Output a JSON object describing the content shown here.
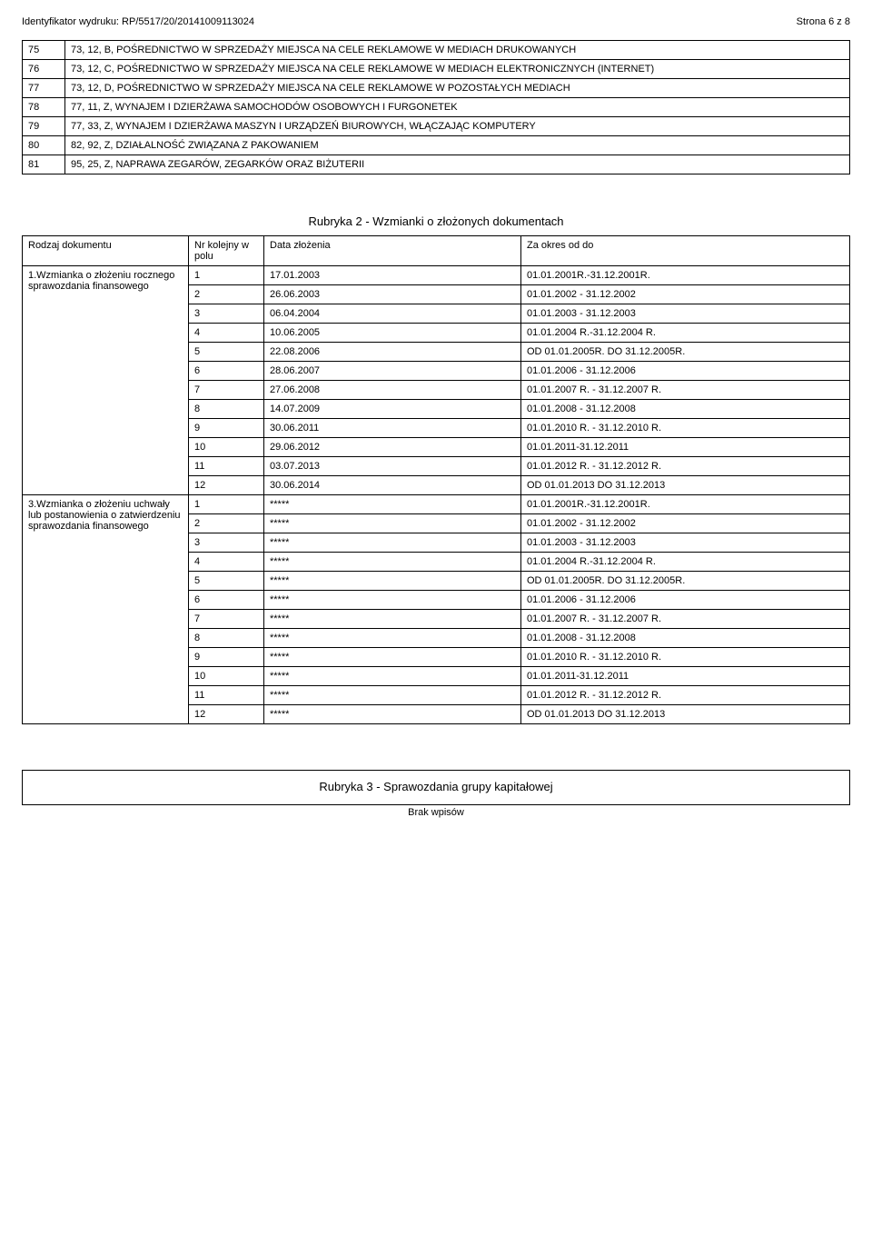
{
  "header": {
    "left": "Identyfikator wydruku: RP/5517/20/20141009113024",
    "right": "Strona 6 z 8"
  },
  "table1": {
    "rows": [
      {
        "n": "75",
        "txt": "73, 12, B, POŚREDNICTWO W SPRZEDAŻY MIEJSCA NA CELE REKLAMOWE W MEDIACH DRUKOWANYCH"
      },
      {
        "n": "76",
        "txt": "73, 12, C, POŚREDNICTWO W SPRZEDAŻY MIEJSCA NA CELE REKLAMOWE W MEDIACH ELEKTRONICZNYCH (INTERNET)"
      },
      {
        "n": "77",
        "txt": "73, 12, D, POŚREDNICTWO W SPRZEDAŻY MIEJSCA NA CELE REKLAMOWE W POZOSTAŁYCH MEDIACH"
      },
      {
        "n": "78",
        "txt": "77, 11, Z, WYNAJEM I DZIERŻAWA SAMOCHODÓW OSOBOWYCH I FURGONETEK"
      },
      {
        "n": "79",
        "txt": "77, 33, Z, WYNAJEM I DZIERŻAWA MASZYN I URZĄDZEŃ BIUROWYCH, WŁĄCZAJĄC KOMPUTERY"
      },
      {
        "n": "80",
        "txt": "82, 92, Z, DZIAŁALNOŚĆ ZWIĄZANA Z PAKOWANIEM"
      },
      {
        "n": "81",
        "txt": "95, 25, Z, NAPRAWA ZEGARÓW, ZEGARKÓW ORAZ BIŻUTERII"
      }
    ]
  },
  "rubryka2": {
    "title": "Rubryka 2 - Wzmianki o złożonych dokumentach",
    "header": {
      "c0": "Rodzaj dokumentu",
      "c1": "Nr kolejny w polu",
      "c2": "Data złożenia",
      "c3": "Za okres od do"
    },
    "sections": [
      {
        "label": "1.Wzmianka o złożeniu rocznego sprawozdania finansowego",
        "rows": [
          {
            "n": "1",
            "d": "17.01.2003",
            "p": "01.01.2001R.-31.12.2001R."
          },
          {
            "n": "2",
            "d": "26.06.2003",
            "p": "01.01.2002 - 31.12.2002"
          },
          {
            "n": "3",
            "d": "06.04.2004",
            "p": "01.01.2003 - 31.12.2003"
          },
          {
            "n": "4",
            "d": "10.06.2005",
            "p": "01.01.2004 R.-31.12.2004 R."
          },
          {
            "n": "5",
            "d": "22.08.2006",
            "p": "OD 01.01.2005R. DO 31.12.2005R."
          },
          {
            "n": "6",
            "d": "28.06.2007",
            "p": "01.01.2006 - 31.12.2006"
          },
          {
            "n": "7",
            "d": "27.06.2008",
            "p": "01.01.2007 R. - 31.12.2007 R."
          },
          {
            "n": "8",
            "d": "14.07.2009",
            "p": "01.01.2008 - 31.12.2008"
          },
          {
            "n": "9",
            "d": "30.06.2011",
            "p": "01.01.2010 R. - 31.12.2010 R."
          },
          {
            "n": "10",
            "d": "29.06.2012",
            "p": "01.01.2011-31.12.2011"
          },
          {
            "n": "11",
            "d": "03.07.2013",
            "p": "01.01.2012 R. - 31.12.2012 R."
          },
          {
            "n": "12",
            "d": "30.06.2014",
            "p": "OD 01.01.2013 DO 31.12.2013"
          }
        ]
      },
      {
        "label": "3.Wzmianka o złożeniu uchwały lub postanowienia o zatwierdzeniu sprawozdania finansowego",
        "rows": [
          {
            "n": "1",
            "d": "*****",
            "p": "01.01.2001R.-31.12.2001R."
          },
          {
            "n": "2",
            "d": "*****",
            "p": "01.01.2002 - 31.12.2002"
          },
          {
            "n": "3",
            "d": "*****",
            "p": "01.01.2003 - 31.12.2003"
          },
          {
            "n": "4",
            "d": "*****",
            "p": "01.01.2004 R.-31.12.2004 R."
          },
          {
            "n": "5",
            "d": "*****",
            "p": "OD 01.01.2005R. DO 31.12.2005R."
          },
          {
            "n": "6",
            "d": "*****",
            "p": "01.01.2006 - 31.12.2006"
          },
          {
            "n": "7",
            "d": "*****",
            "p": "01.01.2007 R. - 31.12.2007 R."
          },
          {
            "n": "8",
            "d": "*****",
            "p": "01.01.2008 - 31.12.2008"
          },
          {
            "n": "9",
            "d": "*****",
            "p": "01.01.2010 R. - 31.12.2010 R."
          },
          {
            "n": "10",
            "d": "*****",
            "p": "01.01.2011-31.12.2011"
          },
          {
            "n": "11",
            "d": "*****",
            "p": "01.01.2012 R. - 31.12.2012 R."
          },
          {
            "n": "12",
            "d": "*****",
            "p": "OD 01.01.2013 DO 31.12.2013"
          }
        ]
      }
    ]
  },
  "rubryka3": {
    "title": "Rubryka 3 - Sprawozdania grupy kapitałowej",
    "brak": "Brak wpisów"
  },
  "layout": {
    "col_widths": {
      "c0": 170,
      "c1": 70,
      "c2": 270
    }
  }
}
